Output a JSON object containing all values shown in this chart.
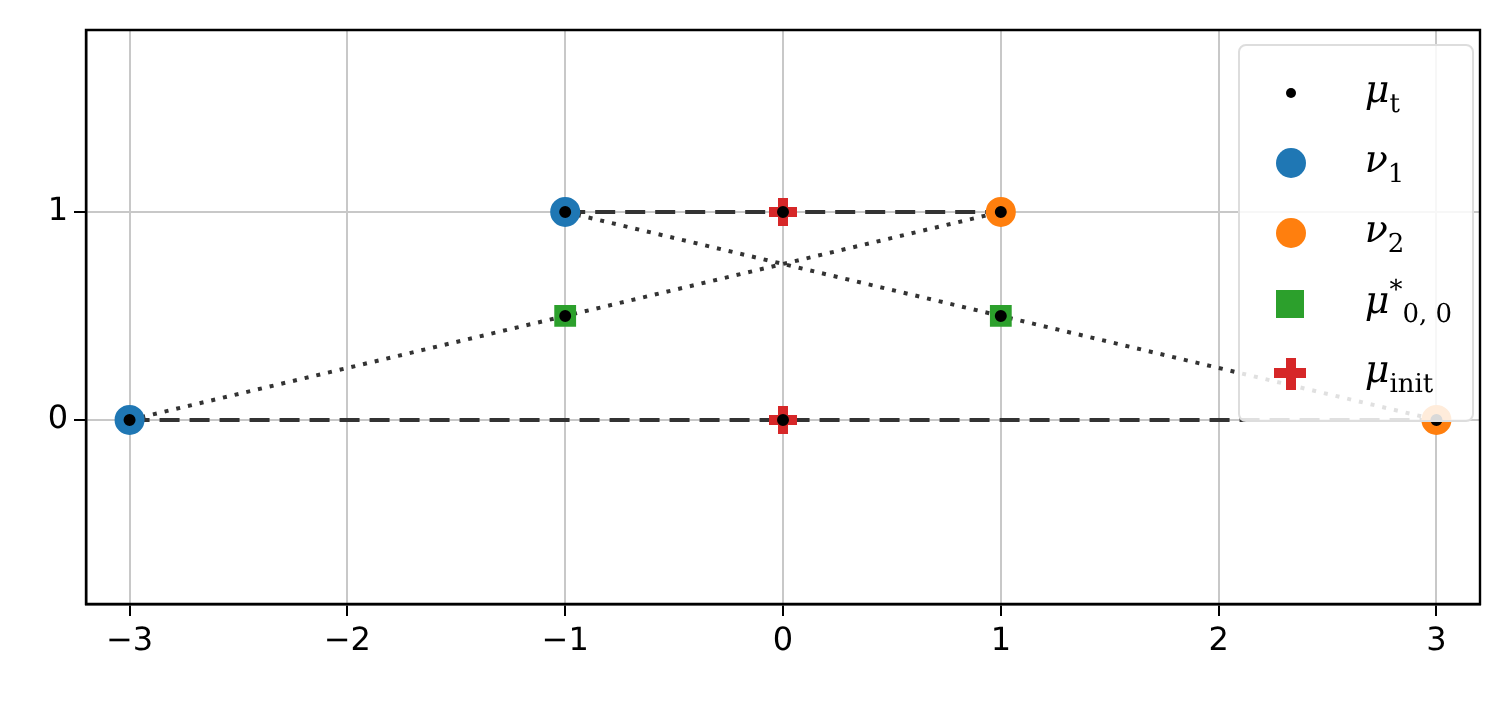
{
  "chart_data": {
    "type": "scatter",
    "xlim": [
      -3.2,
      3.2
    ],
    "ylim": [
      -0.885,
      1.875
    ],
    "xticks": [
      -3,
      -2,
      -1,
      0,
      1,
      2,
      3
    ],
    "yticks": [
      0,
      1
    ],
    "grid": true,
    "legend": "top right",
    "series": [
      {
        "type": "line",
        "line_style": "dashed",
        "marker": "none",
        "color": "#333333",
        "x": [
          -3,
          3
        ],
        "values": [
          0,
          0
        ]
      },
      {
        "type": "line",
        "line_style": "dashed",
        "marker": "none",
        "color": "#333333",
        "x": [
          -1,
          1
        ],
        "values": [
          1,
          1
        ]
      },
      {
        "type": "line",
        "line_style": "dotted",
        "marker": "none",
        "color": "#333333",
        "x": [
          -3,
          1
        ],
        "values": [
          0,
          1
        ]
      },
      {
        "type": "line",
        "line_style": "dotted",
        "marker": "none",
        "color": "#333333",
        "x": [
          -1,
          3
        ],
        "values": [
          1,
          0
        ]
      },
      {
        "name": "ν$_{1}$",
        "marker": "circle",
        "color": "#1f77b4",
        "x": [
          -3,
          -1
        ],
        "values": [
          0,
          1
        ]
      },
      {
        "name": "ν$_{2}$",
        "marker": "circle",
        "color": "#ff7f0e",
        "x": [
          1,
          3
        ],
        "values": [
          1,
          0
        ]
      },
      {
        "name": "μ$^{*}$$_{0, 0}$",
        "marker": "square",
        "color": "#2ca02c",
        "x": [
          -1,
          1
        ],
        "values": [
          0.5,
          0.5
        ]
      },
      {
        "name": "μ$_{init}$",
        "marker": "cross",
        "color": "#d62728",
        "x": [
          0,
          0
        ],
        "values": [
          1,
          0
        ]
      },
      {
        "name": "μ$_{t}$",
        "marker": "circle",
        "color": "#000000",
        "x": [
          -3,
          -1,
          0,
          0,
          1,
          3,
          -1,
          1
        ],
        "values": [
          0,
          1,
          1,
          0,
          1,
          0,
          0.5,
          0.5
        ]
      }
    ]
  }
}
